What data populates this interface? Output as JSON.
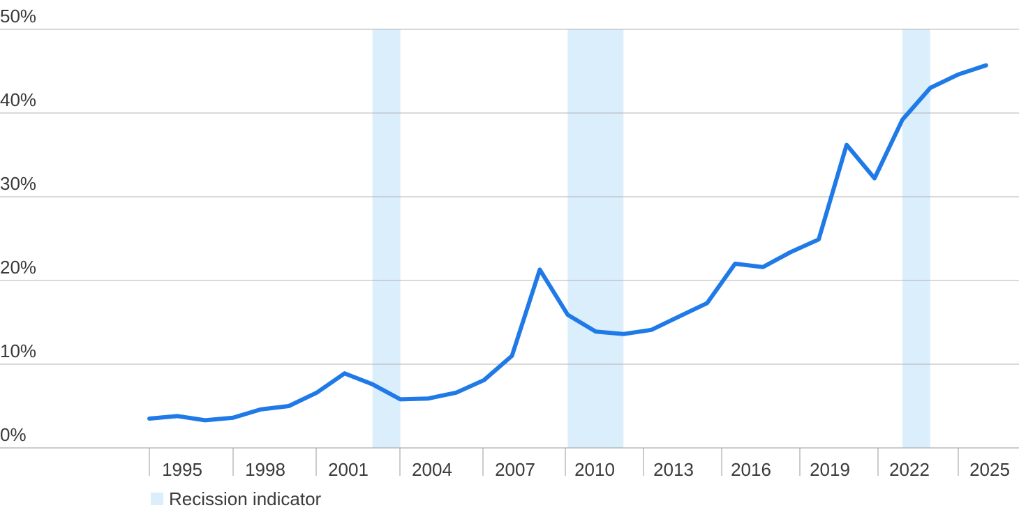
{
  "chart_data": {
    "type": "line",
    "title": "",
    "xlabel": "",
    "ylabel": "",
    "xlim": [
      1989.5,
      2025.6
    ],
    "ylim": [
      0,
      50
    ],
    "yticks": [
      0,
      10,
      20,
      30,
      40,
      50
    ],
    "ytick_labels": [
      "0%",
      "10%",
      "20%",
      "30%",
      "40%",
      "50%"
    ],
    "xticks": [
      1995,
      1998,
      2001,
      2004,
      2007,
      2010,
      2013,
      2016,
      2019,
      2022,
      2025
    ],
    "xtick_labels": [
      "1995",
      "1998",
      "2001",
      "2004",
      "2007",
      "2010",
      "2013",
      "2016",
      "2019",
      "2022",
      "2025"
    ],
    "grid": true,
    "colors": {
      "line": "#1f7ae8",
      "recession": "#dbeefc",
      "grid": "#b3b3b3",
      "axis": "#9a9a9a"
    },
    "series": [
      {
        "x": [
          1994,
          1995,
          1996,
          1997,
          1998,
          1999,
          2000,
          2001,
          2002,
          2003,
          2004,
          2005,
          2006,
          2007,
          2008,
          2009,
          2010,
          2011,
          2012,
          2013,
          2014,
          2015,
          2016,
          2017,
          2018,
          2019,
          2020,
          2021,
          2022,
          2023,
          2024
        ],
        "y": [
          3.5,
          3.8,
          3.3,
          3.6,
          4.6,
          5.0,
          6.6,
          8.9,
          7.6,
          5.8,
          5.9,
          6.6,
          8.1,
          11.0,
          21.3,
          15.9,
          13.9,
          13.6,
          14.1,
          15.7,
          17.3,
          22.0,
          21.6,
          23.4,
          24.9,
          36.2,
          32.2,
          39.2,
          43.0,
          44.6,
          45.7
        ]
      }
    ],
    "recession_bands": [
      [
        2002,
        2003
      ],
      [
        2009,
        2011
      ],
      [
        2021,
        2022
      ]
    ],
    "legend": {
      "label": "Recission indicator",
      "placement": "bottom-left"
    }
  }
}
